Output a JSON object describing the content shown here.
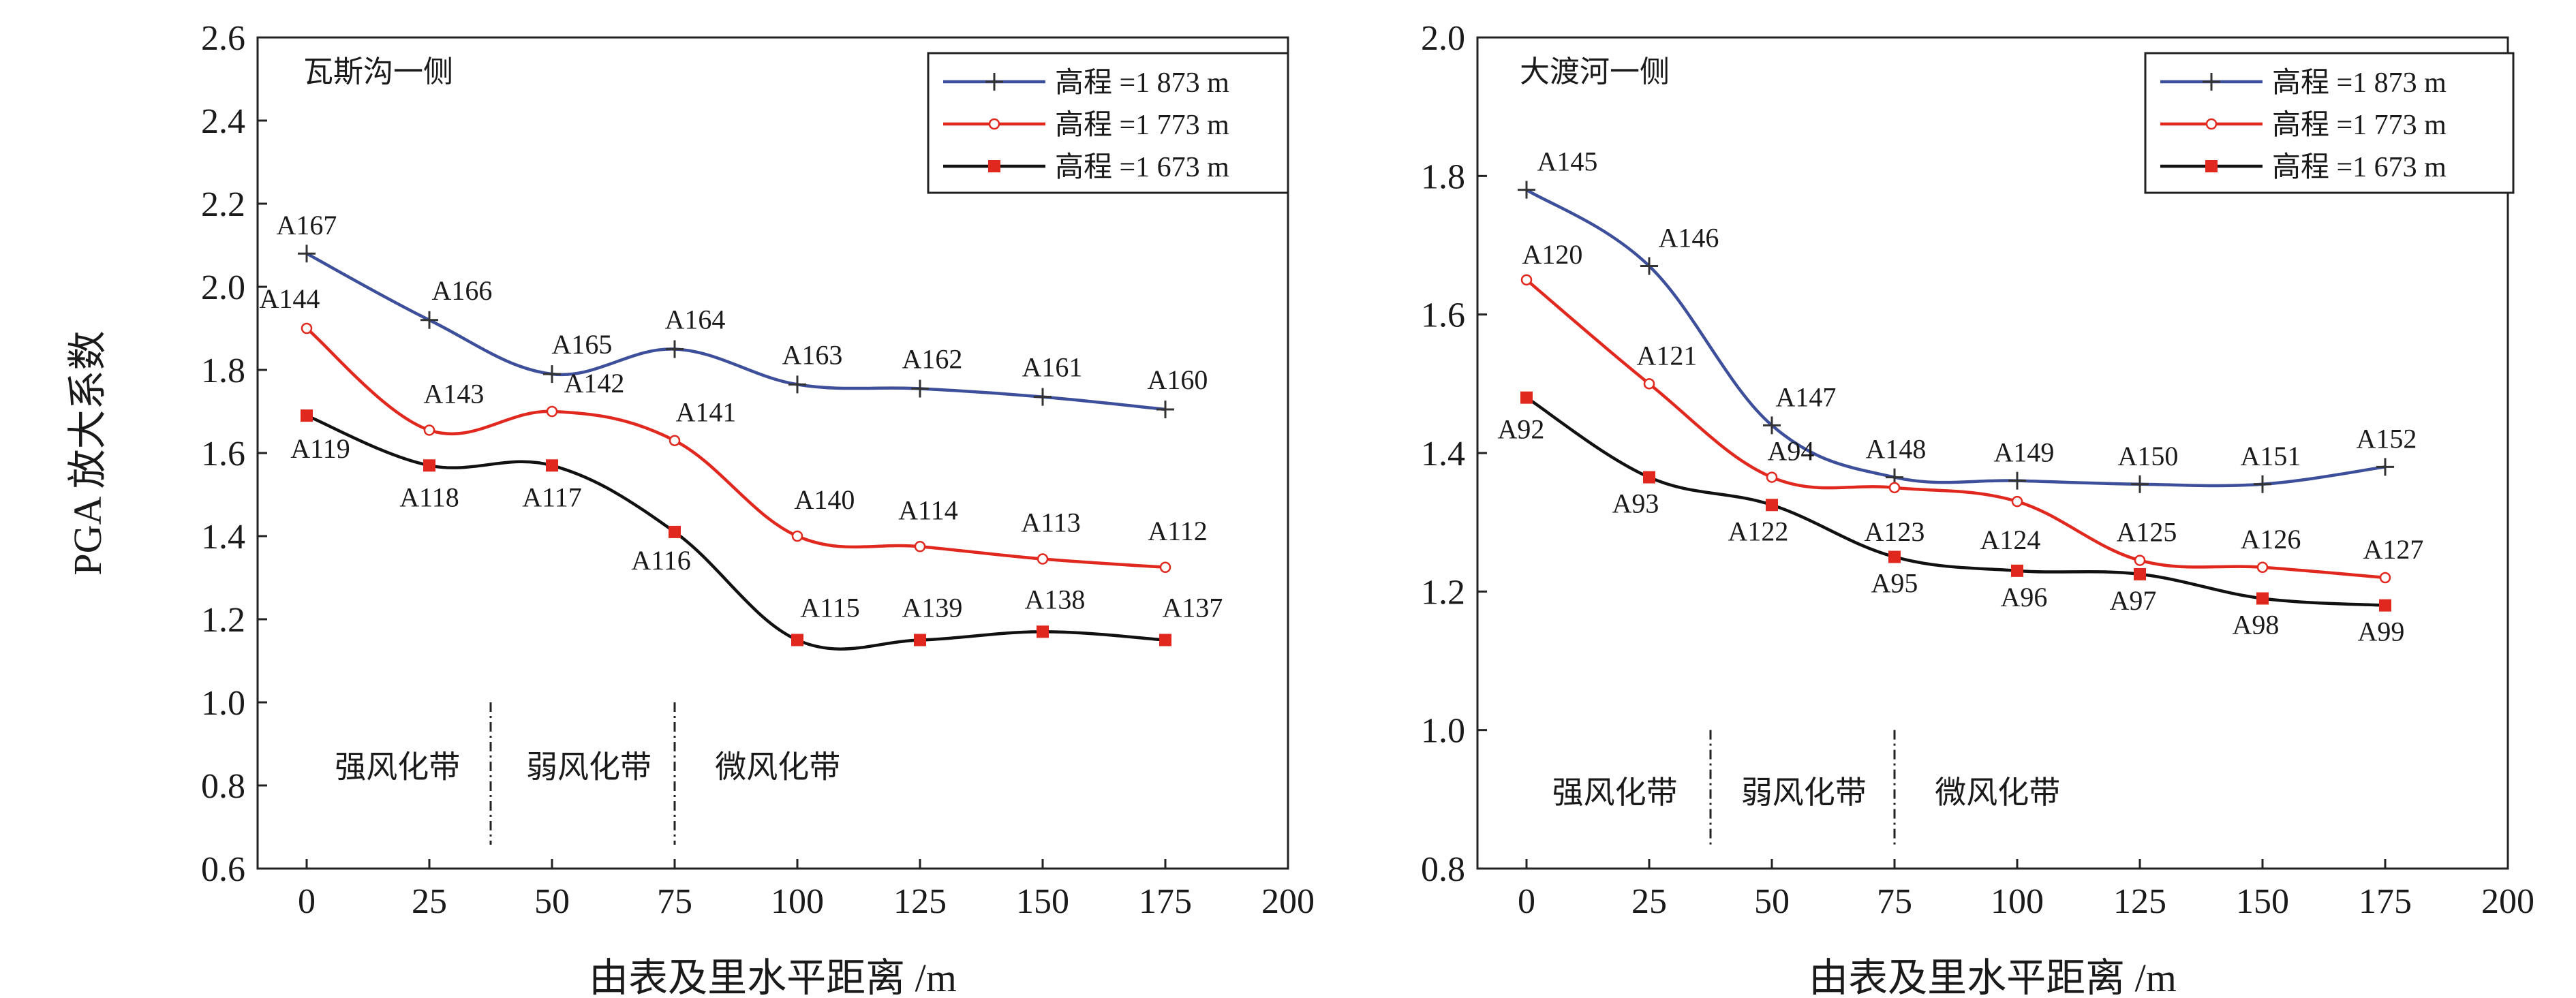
{
  "colors": {
    "blue": "#3d4f9a",
    "red": "#e0281e",
    "black": "#111111"
  },
  "chart_data": [
    {
      "type": "line",
      "title": "瓦斯沟一侧",
      "xlabel": "由表及里水平距离 /m",
      "ylabel": "PGA 放大系数",
      "xlim": [
        -10,
        200
      ],
      "ylim": [
        0.6,
        2.6
      ],
      "xticks": [
        0,
        25,
        50,
        75,
        100,
        125,
        150,
        175,
        200
      ],
      "yticks": [
        0.6,
        0.8,
        1.0,
        1.2,
        1.4,
        1.6,
        1.8,
        2.0,
        2.2,
        2.4,
        2.6
      ],
      "x": [
        0,
        25,
        50,
        75,
        100,
        125,
        150,
        175
      ],
      "legend_position": "top-right",
      "series": [
        {
          "name": "高程 =1 873 m",
          "color": "#3d4f9a",
          "marker": "plus",
          "values": [
            2.08,
            1.92,
            1.79,
            1.85,
            1.765,
            1.755,
            1.735,
            1.705
          ],
          "labels": [
            "A167",
            "A166",
            "A165",
            "A164",
            "A163",
            "A162",
            "A161",
            "A160"
          ]
        },
        {
          "name": "高程 =1 773 m",
          "color": "#e0281e",
          "marker": "circle",
          "values": [
            1.9,
            1.655,
            1.7,
            1.63,
            1.4,
            1.375,
            1.345,
            1.325
          ],
          "labels": [
            "A144",
            "A143",
            "A142",
            "A141",
            "A140",
            "A114",
            "A113",
            "A112"
          ]
        },
        {
          "name": "高程 =1 673 m",
          "color": "#111111",
          "marker": "square",
          "values": [
            1.69,
            1.57,
            1.57,
            1.41,
            1.15,
            1.15,
            1.17,
            1.15
          ],
          "labels": [
            "A119",
            "A118",
            "A117",
            "A116",
            "A115",
            "A139",
            "A138",
            "A137"
          ]
        }
      ],
      "zones": {
        "dividers": [
          37.5,
          75
        ],
        "labels": [
          {
            "text": "强风化带",
            "x": 18.5
          },
          {
            "text": "弱风化带",
            "x": 57.5
          },
          {
            "text": "微风化带",
            "x": 96
          }
        ],
        "label_y": 0.845
      }
    },
    {
      "type": "line",
      "title": "大渡河一侧",
      "xlabel": "由表及里水平距离 /m",
      "ylabel": "",
      "xlim": [
        -10,
        200
      ],
      "ylim": [
        0.8,
        2.0
      ],
      "xticks": [
        0,
        25,
        50,
        75,
        100,
        125,
        150,
        175,
        200
      ],
      "yticks": [
        0.8,
        1.0,
        1.2,
        1.4,
        1.6,
        1.8,
        2.0
      ],
      "x": [
        0,
        25,
        50,
        75,
        100,
        125,
        150,
        175
      ],
      "legend_position": "top-right",
      "series": [
        {
          "name": "高程 =1 873 m",
          "color": "#3d4f9a",
          "marker": "plus",
          "values": [
            1.78,
            1.67,
            1.44,
            1.365,
            1.36,
            1.355,
            1.355,
            1.38
          ],
          "labels": [
            "A145",
            "A146",
            "A147",
            "A148",
            "A149",
            "A150",
            "A151",
            "A152"
          ]
        },
        {
          "name": "高程 =1 773 m",
          "color": "#e0281e",
          "marker": "circle",
          "values": [
            1.65,
            1.5,
            1.365,
            1.35,
            1.33,
            1.245,
            1.235,
            1.22
          ],
          "labels": [
            "A120",
            "A121",
            "A94",
            "A123",
            "A124",
            "A125",
            "A126",
            "A127"
          ]
        },
        {
          "name": "高程 =1 673 m",
          "color": "#111111",
          "marker": "square",
          "values": [
            1.48,
            1.365,
            1.325,
            1.25,
            1.23,
            1.225,
            1.19,
            1.18
          ],
          "labels": [
            "A92",
            "A93",
            "A122",
            "A95",
            "A96",
            "A97",
            "A98",
            "A99"
          ]
        }
      ],
      "zones": {
        "dividers": [
          37.5,
          75
        ],
        "labels": [
          {
            "text": "强风化带",
            "x": 18
          },
          {
            "text": "弱风化带",
            "x": 56.5
          },
          {
            "text": "微风化带",
            "x": 96
          }
        ],
        "label_y": 0.91
      }
    }
  ]
}
